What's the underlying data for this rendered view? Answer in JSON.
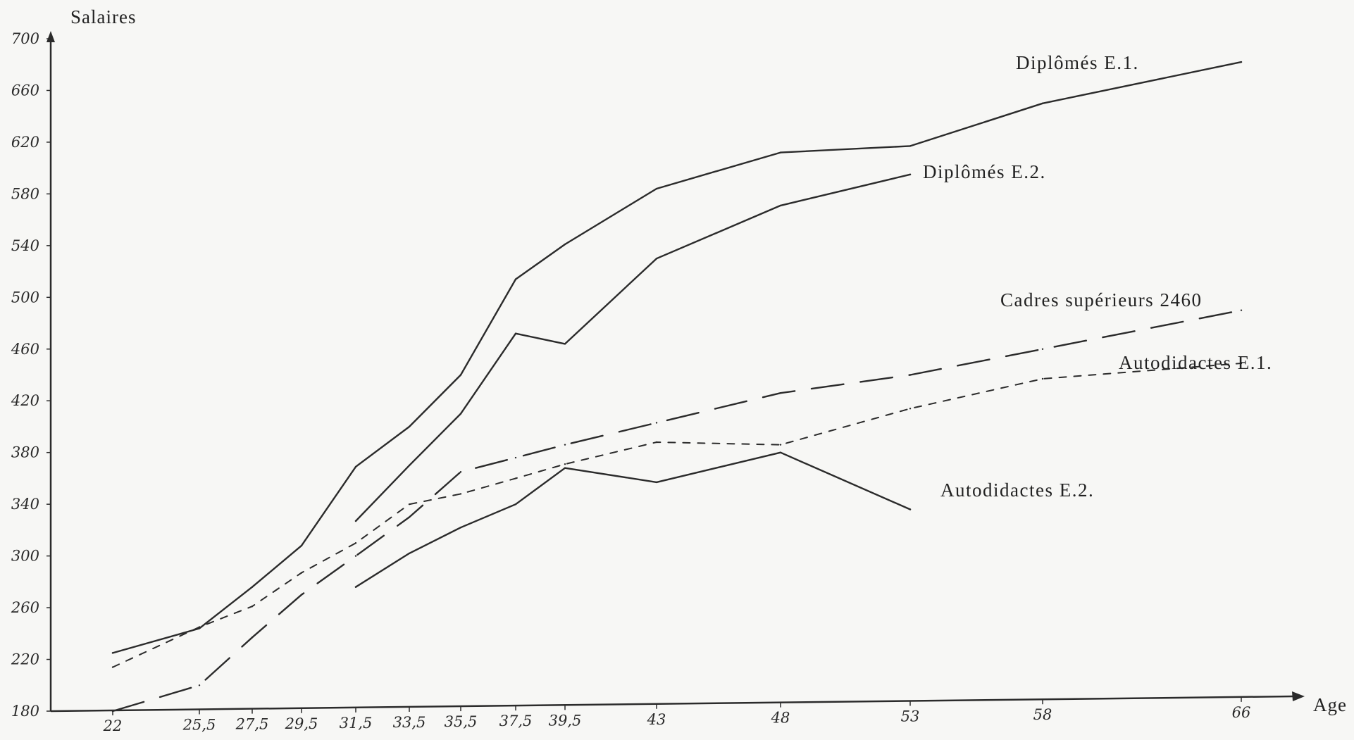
{
  "chart_data": {
    "type": "line",
    "title": "",
    "ylabel": "Salaires",
    "xlabel": "Age",
    "ylim": [
      180,
      700
    ],
    "y_ticks": [
      {
        "value": 180,
        "label": "180"
      },
      {
        "value": 220,
        "label": "220"
      },
      {
        "value": 260,
        "label": "260"
      },
      {
        "value": 300,
        "label": "300"
      },
      {
        "value": 340,
        "label": "340"
      },
      {
        "value": 380,
        "label": "380"
      },
      {
        "value": 420,
        "label": "420"
      },
      {
        "value": 460,
        "label": "460"
      },
      {
        "value": 500,
        "label": "500"
      },
      {
        "value": 540,
        "label": "540"
      },
      {
        "value": 580,
        "label": "580"
      },
      {
        "value": 620,
        "label": "620"
      },
      {
        "value": 660,
        "label": "660"
      },
      {
        "value": 700,
        "label": "700"
      }
    ],
    "x_ticks": [
      {
        "value": 22,
        "label": "22"
      },
      {
        "value": 25.5,
        "label": "25,5"
      },
      {
        "value": 27.5,
        "label": "27,5"
      },
      {
        "value": 29.5,
        "label": "29,5"
      },
      {
        "value": 31.5,
        "label": "31,5"
      },
      {
        "value": 33.5,
        "label": "33,5"
      },
      {
        "value": 35.5,
        "label": "35,5"
      },
      {
        "value": 37.5,
        "label": "37,5"
      },
      {
        "value": 39.5,
        "label": "39,5"
      },
      {
        "value": 43,
        "label": "43"
      },
      {
        "value": 48,
        "label": "48"
      },
      {
        "value": 53,
        "label": "53"
      },
      {
        "value": 58,
        "label": "58"
      },
      {
        "value": 66,
        "label": "66"
      }
    ],
    "series": [
      {
        "name": "Diplômés E.1.",
        "style": "solid",
        "points": [
          [
            22,
            225
          ],
          [
            25.5,
            244
          ],
          [
            27.5,
            276
          ],
          [
            29.5,
            308
          ],
          [
            31.5,
            369
          ],
          [
            33.5,
            400
          ],
          [
            35.5,
            440
          ],
          [
            37.5,
            514
          ],
          [
            39.5,
            541
          ],
          [
            43,
            584
          ],
          [
            48,
            612
          ],
          [
            53,
            617
          ],
          [
            58,
            650
          ],
          [
            66,
            682
          ]
        ]
      },
      {
        "name": "Diplômés E.2.",
        "style": "solid",
        "points": [
          [
            31.5,
            327
          ],
          [
            33.5,
            370
          ],
          [
            35.5,
            410
          ],
          [
            37.5,
            472
          ],
          [
            39.5,
            464
          ],
          [
            43,
            530
          ],
          [
            48,
            571
          ],
          [
            53,
            595
          ]
        ]
      },
      {
        "name": "Cadres supérieurs 2460",
        "style": "long-dash",
        "points": [
          [
            22,
            180
          ],
          [
            25.5,
            200
          ],
          [
            27.5,
            237
          ],
          [
            29.5,
            270
          ],
          [
            31.5,
            300
          ],
          [
            33.5,
            330
          ],
          [
            35.5,
            365
          ],
          [
            37.5,
            376
          ],
          [
            39.5,
            386
          ],
          [
            43,
            403
          ],
          [
            48,
            426
          ],
          [
            53,
            440
          ],
          [
            58,
            460
          ],
          [
            66,
            490
          ]
        ]
      },
      {
        "name": "Autodidactes E.1.",
        "style": "short-dash",
        "points": [
          [
            22,
            214
          ],
          [
            25.5,
            245
          ],
          [
            27.5,
            261
          ],
          [
            29.5,
            287
          ],
          [
            31.5,
            310
          ],
          [
            33.5,
            340
          ],
          [
            35.5,
            348
          ],
          [
            37.5,
            360
          ],
          [
            39.5,
            371
          ],
          [
            43,
            388
          ],
          [
            48,
            386
          ],
          [
            53,
            414
          ],
          [
            58,
            437
          ],
          [
            66,
            449
          ]
        ]
      },
      {
        "name": "Autodidactes E.2.",
        "style": "solid",
        "points": [
          [
            31.5,
            276
          ],
          [
            33.5,
            302
          ],
          [
            35.5,
            322
          ],
          [
            37.5,
            340
          ],
          [
            39.5,
            368
          ],
          [
            43,
            357
          ],
          [
            48,
            380
          ],
          [
            53,
            336
          ]
        ]
      }
    ],
    "labels": [
      {
        "series": 0,
        "text": "Diplômés E.1."
      },
      {
        "series": 1,
        "text": "Diplômés E.2."
      },
      {
        "series": 2,
        "text": "Cadres supérieurs  2460"
      },
      {
        "series": 3,
        "text": "Autodidactes E.1."
      },
      {
        "series": 4,
        "text": "Autodidactes E.2."
      }
    ],
    "grid": false,
    "legend": "inline labels next to lines"
  },
  "colors": {
    "ink": "#2b2b2b",
    "background": "#f7f7f5"
  }
}
